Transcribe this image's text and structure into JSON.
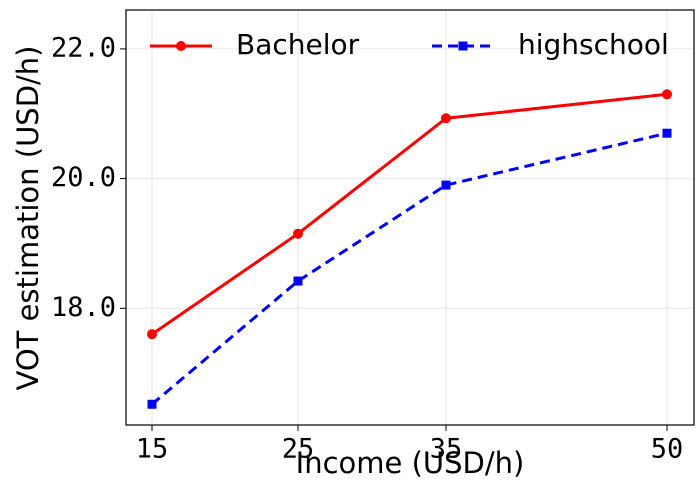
{
  "chart_data": {
    "type": "line",
    "x_categories": [
      "15",
      "25",
      "35",
      "50"
    ],
    "xlabel": "Income (USD/h)",
    "ylabel": "VOT estimation (USD/h)",
    "ylim": [
      16.2,
      22.6
    ],
    "yticks": [
      18.0,
      20.0,
      22.0
    ],
    "ytick_labels": [
      "18.0",
      "20.0",
      "22.0"
    ],
    "grid": true,
    "legend_position": "top",
    "series": [
      {
        "name": "Bachelor",
        "values": [
          17.6,
          19.15,
          20.93,
          21.3
        ],
        "color": "#ff0000",
        "marker": "circle",
        "line_style": "solid"
      },
      {
        "name": "highschool",
        "values": [
          16.52,
          18.42,
          19.9,
          20.7
        ],
        "color": "#0000ff",
        "marker": "square",
        "line_style": "dashed"
      }
    ]
  }
}
